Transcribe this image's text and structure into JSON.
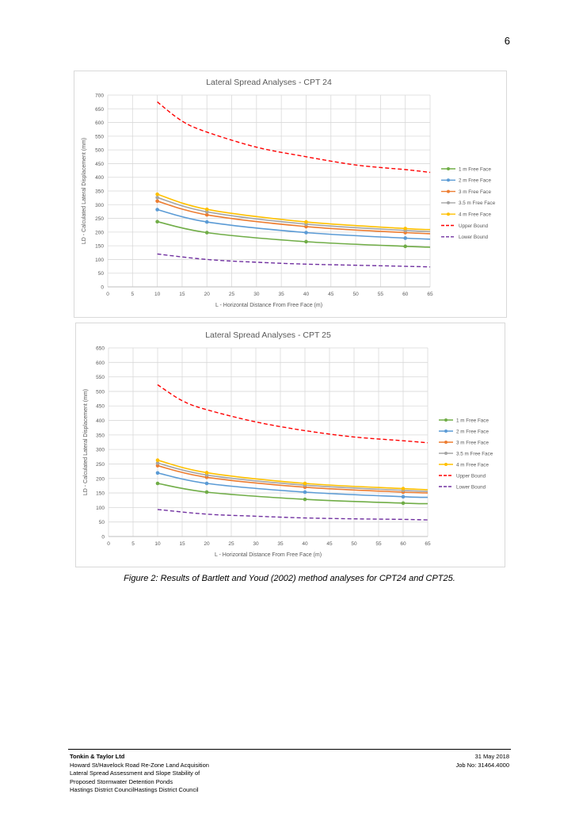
{
  "page": {
    "number": "6"
  },
  "caption": "Figure 2: Results of Bartlett and Youd (2002) method analyses for CPT24 and CPT25.",
  "footer": {
    "company": "Tonkin & Taylor Ltd",
    "lines": [
      "Howard St/Havelock Road Re-Zone Land Acquisition",
      "Lateral Spread Assessment and Slope Stability of",
      "Proposed Stormwater Detention Ponds",
      "Hastings District CouncilHastings District Council"
    ],
    "date": "31 May 2018",
    "job": "Job No: 31464.4000"
  },
  "series_style": {
    "1 m Free Face": "#70ad47",
    "2 m Free Face": "#5b9bd5",
    "3 m Free Face": "#ed7d31",
    "3.5 m Free Face": "#a5a5a5",
    "4 m Free Face": "#ffc000",
    "Upper Bound": "#ff0000",
    "Lower Bound": "#7030a0"
  },
  "chart_data": [
    {
      "type": "line",
      "title": "Lateral Spread Analyses - CPT 24",
      "xlabel": "L - Horizontal Distance From Free Face (m)",
      "ylabel": "LD - Calculated Lateral Displacement (mm)",
      "xlim": [
        0,
        65
      ],
      "xticks": [
        0,
        5,
        10,
        15,
        20,
        25,
        30,
        35,
        40,
        45,
        50,
        55,
        60,
        65
      ],
      "ylim": [
        0,
        700
      ],
      "yticks": [
        0,
        50,
        100,
        150,
        200,
        250,
        300,
        350,
        400,
        450,
        500,
        550,
        600,
        650,
        700
      ],
      "grid": true,
      "legend_position": "right",
      "series": [
        {
          "name": "1 m Free Face",
          "markers": true,
          "dashed": false,
          "x": [
            10,
            20,
            40,
            60,
            65
          ],
          "y": [
            238,
            198,
            165,
            148,
            145
          ]
        },
        {
          "name": "2 m Free Face",
          "markers": true,
          "dashed": false,
          "x": [
            10,
            20,
            40,
            60,
            65
          ],
          "y": [
            282,
            237,
            198,
            178,
            174
          ]
        },
        {
          "name": "3 m Free Face",
          "markers": true,
          "dashed": false,
          "x": [
            10,
            20,
            40,
            60,
            65
          ],
          "y": [
            313,
            263,
            220,
            198,
            194
          ]
        },
        {
          "name": "3.5 m Free Face",
          "markers": true,
          "dashed": false,
          "x": [
            10,
            20,
            40,
            60,
            65
          ],
          "y": [
            326,
            274,
            229,
            206,
            202
          ]
        },
        {
          "name": "4 m Free Face",
          "markers": true,
          "dashed": false,
          "x": [
            10,
            20,
            40,
            60,
            65
          ],
          "y": [
            338,
            283,
            237,
            213,
            209
          ]
        },
        {
          "name": "Upper Bound",
          "markers": false,
          "dashed": true,
          "x": [
            10,
            15,
            20,
            30,
            40,
            50,
            60,
            65
          ],
          "y": [
            675,
            605,
            565,
            510,
            475,
            445,
            428,
            418
          ]
        },
        {
          "name": "Lower Bound",
          "markers": false,
          "dashed": true,
          "x": [
            10,
            20,
            30,
            40,
            50,
            60,
            65
          ],
          "y": [
            120,
            100,
            90,
            83,
            79,
            75,
            73
          ]
        }
      ]
    },
    {
      "type": "line",
      "title": "Lateral Spread Analyses - CPT 25",
      "xlabel": "L - Horizontal Distance From Free Face (m)",
      "ylabel": "LD - Calculated Lateral Displacement (mm)",
      "xlim": [
        0,
        65
      ],
      "xticks": [
        0,
        5,
        10,
        15,
        20,
        25,
        30,
        35,
        40,
        45,
        50,
        55,
        60,
        65
      ],
      "ylim": [
        0,
        650
      ],
      "yticks": [
        0,
        50,
        100,
        150,
        200,
        250,
        300,
        350,
        400,
        450,
        500,
        550,
        600,
        650
      ],
      "grid": true,
      "legend_position": "right",
      "series": [
        {
          "name": "1 m Free Face",
          "markers": true,
          "dashed": false,
          "x": [
            10,
            20,
            40,
            60,
            65
          ],
          "y": [
            183,
            153,
            128,
            115,
            113
          ]
        },
        {
          "name": "2 m Free Face",
          "markers": true,
          "dashed": false,
          "x": [
            10,
            20,
            40,
            60,
            65
          ],
          "y": [
            219,
            183,
            153,
            137,
            135
          ]
        },
        {
          "name": "3 m Free Face",
          "markers": true,
          "dashed": false,
          "x": [
            10,
            20,
            40,
            60,
            65
          ],
          "y": [
            244,
            204,
            170,
            153,
            150
          ]
        },
        {
          "name": "3.5 m Free Face",
          "markers": true,
          "dashed": false,
          "x": [
            10,
            20,
            40,
            60,
            65
          ],
          "y": [
            253,
            212,
            177,
            159,
            155
          ]
        },
        {
          "name": "4 m Free Face",
          "markers": true,
          "dashed": false,
          "x": [
            10,
            20,
            40,
            60,
            65
          ],
          "y": [
            263,
            220,
            183,
            165,
            161
          ]
        },
        {
          "name": "Upper Bound",
          "markers": false,
          "dashed": true,
          "x": [
            10,
            15,
            20,
            30,
            40,
            50,
            60,
            65
          ],
          "y": [
            523,
            468,
            437,
            395,
            365,
            343,
            330,
            323
          ]
        },
        {
          "name": "Lower Bound",
          "markers": false,
          "dashed": true,
          "x": [
            10,
            20,
            30,
            40,
            50,
            60,
            65
          ],
          "y": [
            93,
            77,
            70,
            64,
            61,
            59,
            57
          ]
        }
      ]
    }
  ]
}
